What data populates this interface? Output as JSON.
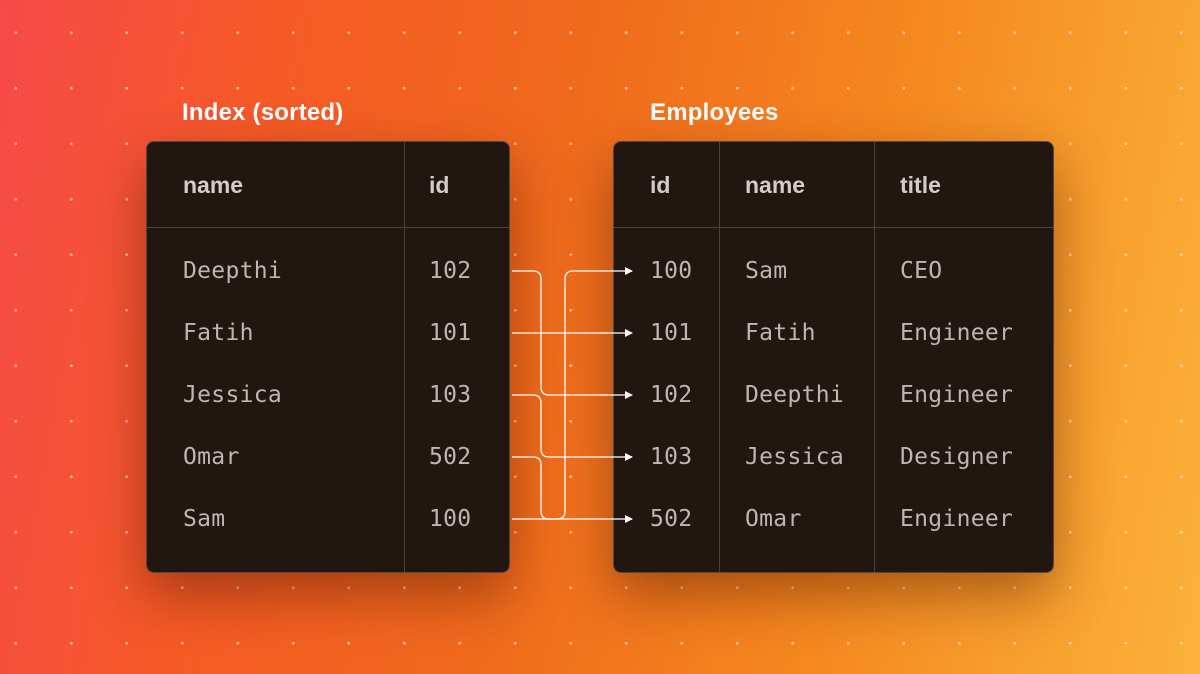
{
  "index_table": {
    "caption": "Index (sorted)",
    "headers": [
      "name",
      "id"
    ],
    "rows": [
      [
        "Deepthi",
        "102"
      ],
      [
        "Fatih",
        "101"
      ],
      [
        "Jessica",
        "103"
      ],
      [
        "Omar",
        "502"
      ],
      [
        "Sam",
        "100"
      ]
    ]
  },
  "employees_table": {
    "caption": "Employees",
    "headers": [
      "id",
      "name",
      "title"
    ],
    "rows": [
      [
        "100",
        "Sam",
        "CEO"
      ],
      [
        "101",
        "Fatih",
        "Engineer"
      ],
      [
        "102",
        "Deepthi",
        "Engineer"
      ],
      [
        "103",
        "Jessica",
        "Designer"
      ],
      [
        "502",
        "Omar",
        "Engineer"
      ]
    ]
  },
  "pointers": [
    {
      "from_row": 0,
      "to_row": 2
    },
    {
      "from_row": 1,
      "to_row": 1
    },
    {
      "from_row": 2,
      "to_row": 3
    },
    {
      "from_row": 3,
      "to_row": 4
    },
    {
      "from_row": 4,
      "to_row": 0
    }
  ],
  "colors": {
    "background_start": "#f7494a",
    "background_end": "#fbb23a",
    "panel": "#221611",
    "text": "#bdb6b2",
    "arrow": "#ffffff"
  }
}
